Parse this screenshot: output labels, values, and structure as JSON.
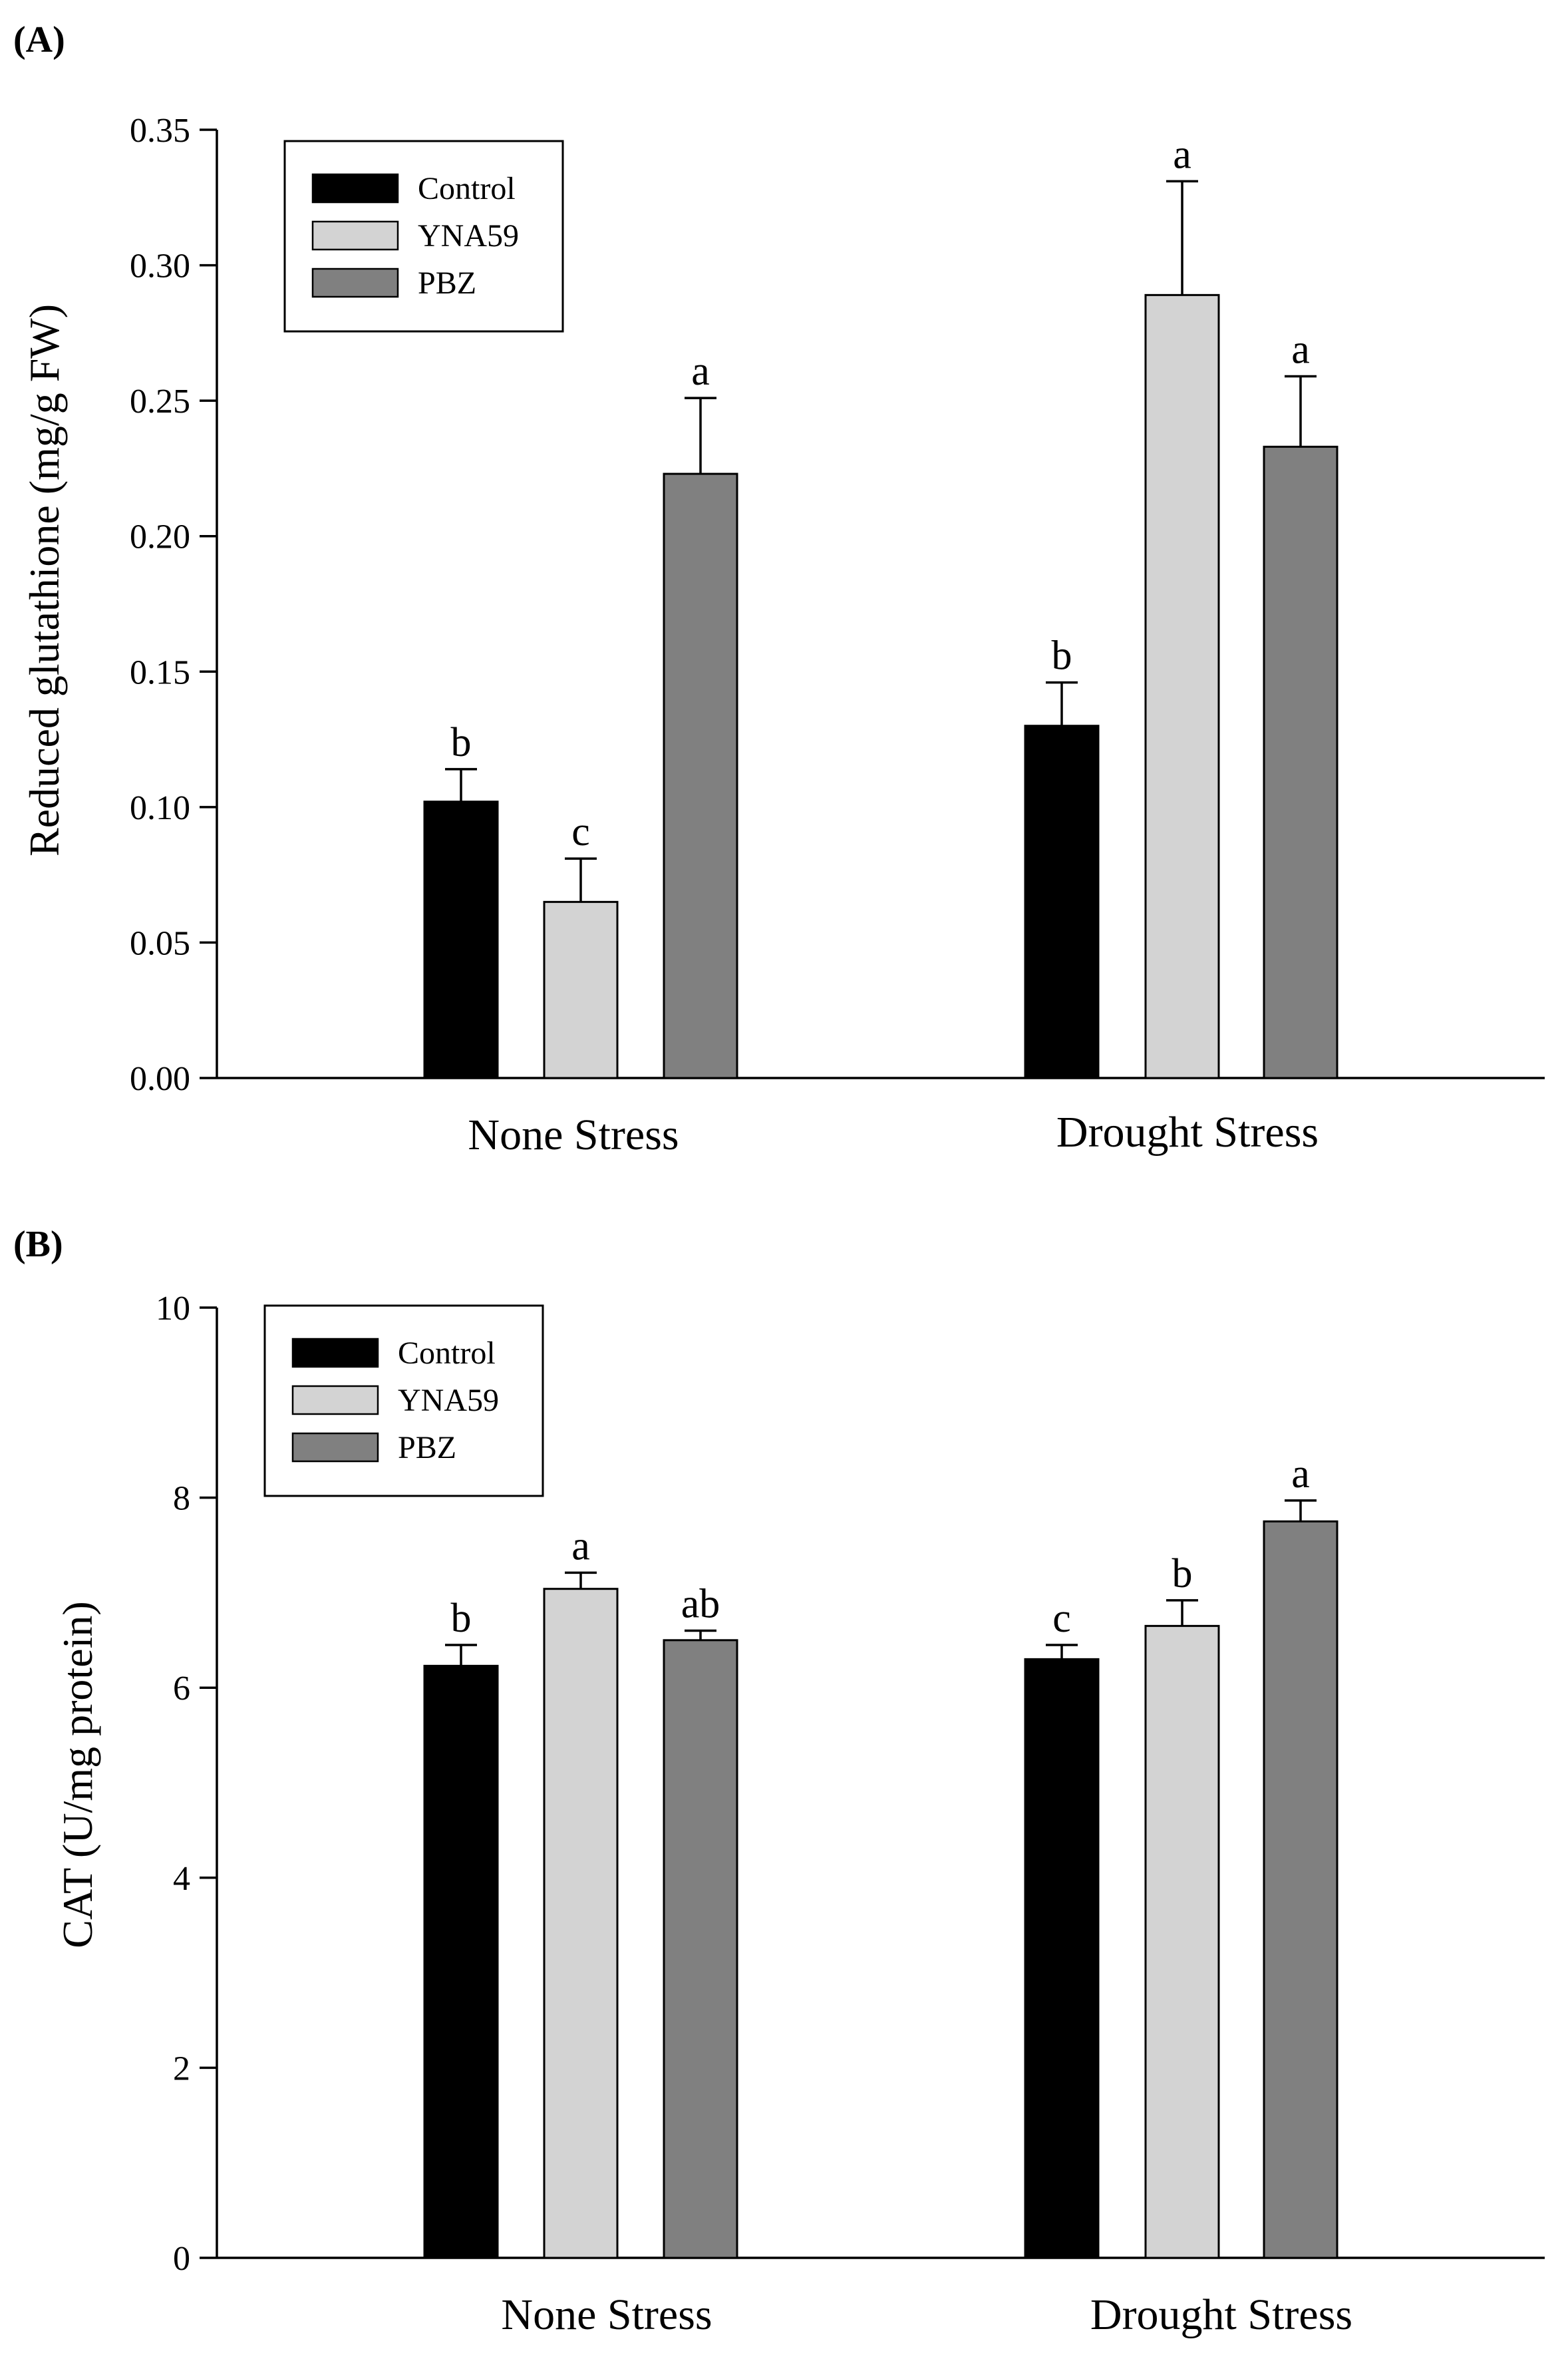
{
  "chart_data": [
    {
      "panel_label": "(A)",
      "type": "bar",
      "categories": [
        "None Stress",
        "Drought Stress"
      ],
      "series": [
        {
          "name": "Control",
          "color": "#000000",
          "values": [
            0.102,
            0.13
          ],
          "errors": [
            0.012,
            0.016
          ],
          "letters": [
            "b",
            "b"
          ]
        },
        {
          "name": "YNA59",
          "color": "#d3d3d3",
          "values": [
            0.065,
            0.289
          ],
          "errors": [
            0.016,
            0.042
          ],
          "letters": [
            "c",
            "a"
          ]
        },
        {
          "name": "PBZ",
          "color": "#808080",
          "values": [
            0.223,
            0.233
          ],
          "errors": [
            0.028,
            0.026
          ],
          "letters": [
            "a",
            "a"
          ]
        }
      ],
      "ylabel": "Reduced glutathione (mg/g FW)",
      "xlabel": "",
      "ylim": [
        0,
        0.35
      ],
      "yticks": [
        "0.00",
        "0.05",
        "0.10",
        "0.15",
        "0.20",
        "0.25",
        "0.30",
        "0.35"
      ],
      "grid": false,
      "legend_position": "top-left"
    },
    {
      "panel_label": "(B)",
      "type": "bar",
      "categories": [
        "None Stress",
        "Drought Stress"
      ],
      "series": [
        {
          "name": "Control",
          "color": "#000000",
          "values": [
            6.23,
            6.3
          ],
          "errors": [
            0.22,
            0.15
          ],
          "letters": [
            "b",
            "c"
          ]
        },
        {
          "name": "YNA59",
          "color": "#d3d3d3",
          "values": [
            7.04,
            6.65
          ],
          "errors": [
            0.17,
            0.27
          ],
          "letters": [
            "a",
            "b"
          ]
        },
        {
          "name": "PBZ",
          "color": "#808080",
          "values": [
            6.5,
            7.75
          ],
          "errors": [
            0.1,
            0.22
          ],
          "letters": [
            "ab",
            "a"
          ]
        }
      ],
      "ylabel": "CAT (U/mg protein)",
      "xlabel": "",
      "ylim": [
        0,
        10
      ],
      "yticks": [
        "0",
        "2",
        "4",
        "6",
        "8",
        "10"
      ],
      "grid": false,
      "legend_position": "top-left"
    }
  ]
}
